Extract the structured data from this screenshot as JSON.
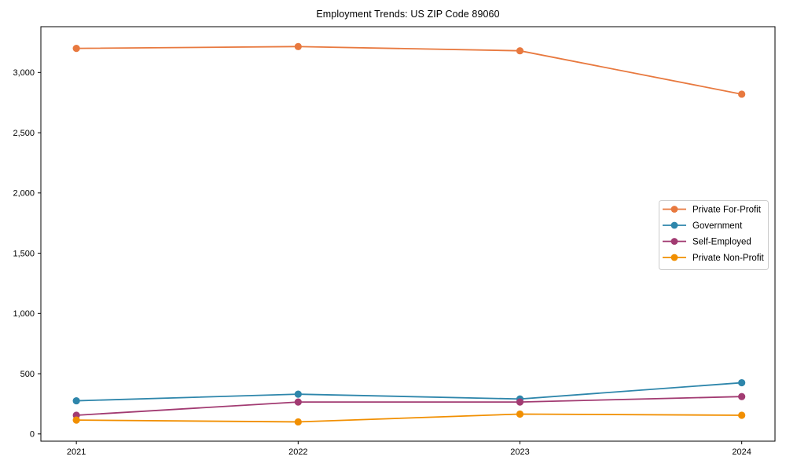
{
  "chart_data": {
    "type": "line",
    "title": "Employment Trends: US ZIP Code 89060",
    "xlabel": "",
    "ylabel": "",
    "x": [
      2021,
      2022,
      2023,
      2024
    ],
    "x_tick_labels": [
      "2021",
      "2022",
      "2023",
      "2024"
    ],
    "yticks": [
      0,
      500,
      1000,
      1500,
      2000,
      2500,
      3000
    ],
    "ytick_labels": [
      "0",
      "500",
      "1,000",
      "1,500",
      "2,000",
      "2,500",
      "3,000"
    ],
    "xlim": [
      2020.84,
      2024.15
    ],
    "ylim": [
      -60,
      3380
    ],
    "grid": false,
    "legend_position": "center right",
    "series": [
      {
        "name": "Private For-Profit",
        "color": "#E8793F",
        "values": [
          3200,
          3215,
          3180,
          2820
        ]
      },
      {
        "name": "Government",
        "color": "#2E86AB",
        "values": [
          275,
          330,
          290,
          425
        ]
      },
      {
        "name": "Self-Employed",
        "color": "#A23B72",
        "values": [
          155,
          265,
          265,
          310
        ]
      },
      {
        "name": "Private Non-Profit",
        "color": "#F18F01",
        "values": [
          115,
          100,
          165,
          155
        ]
      }
    ],
    "style": {
      "background": "#ffffff",
      "axis_color": "#000000",
      "tick_label_color": "#000000",
      "legend_border": "#cccccc",
      "legend_background": "#ffffff"
    }
  }
}
